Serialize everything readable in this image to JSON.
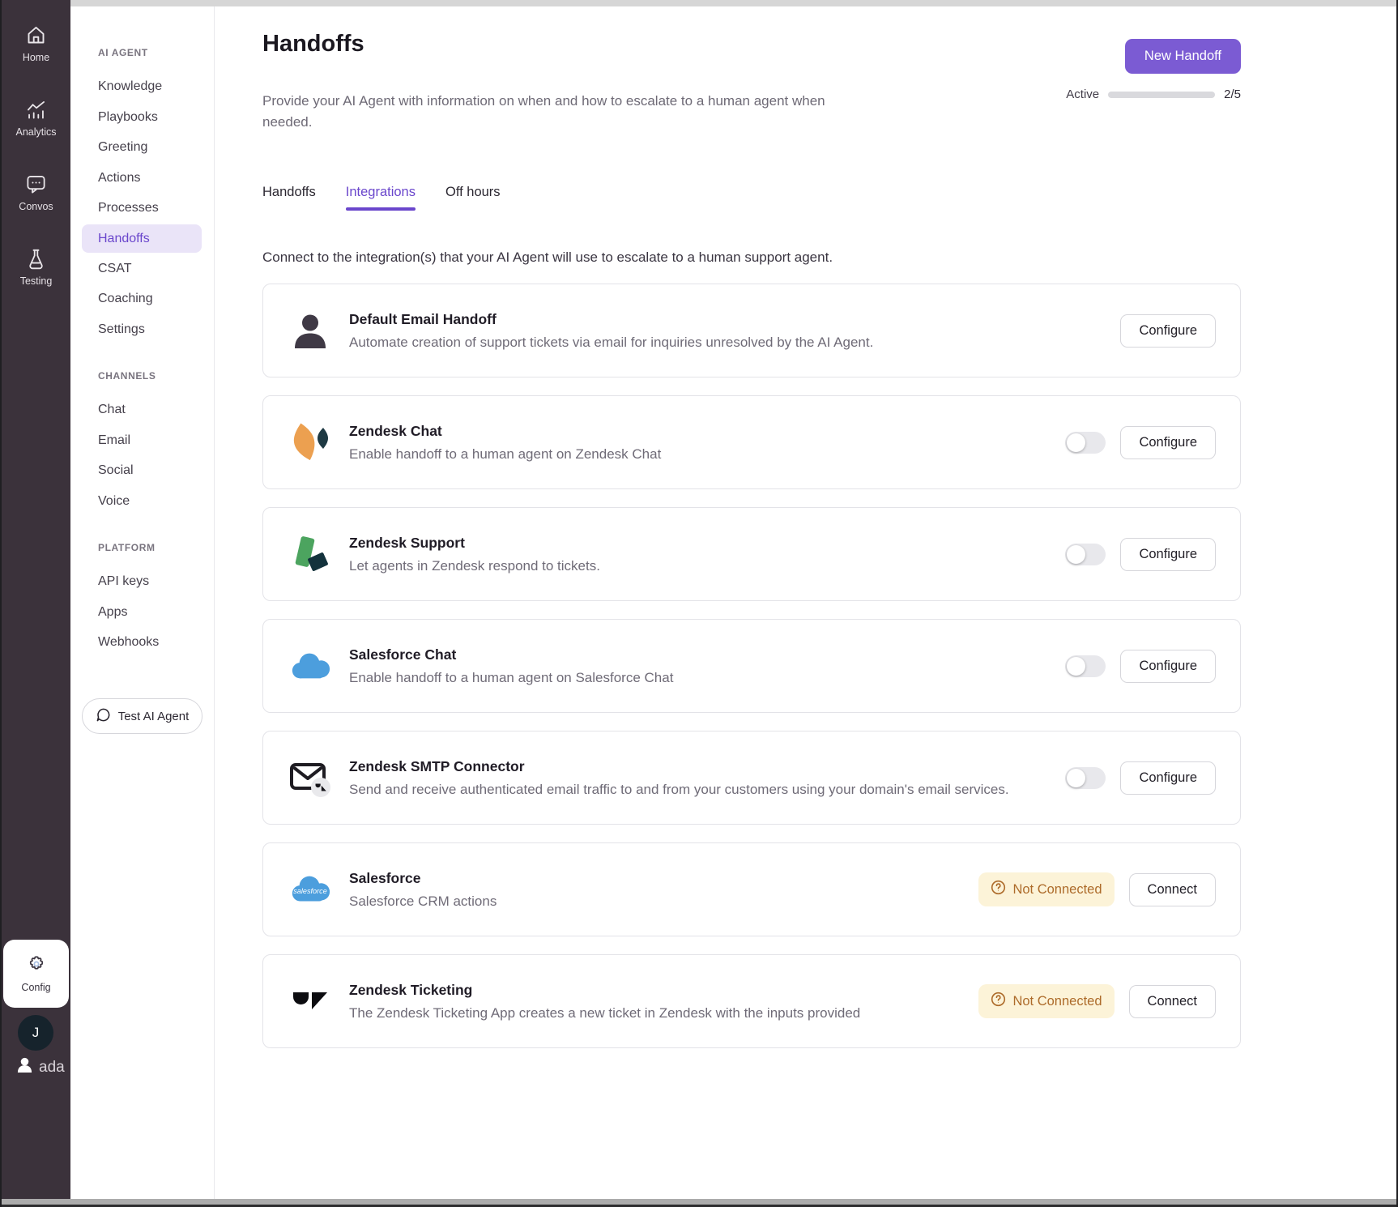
{
  "colors": {
    "rail_bg": "#3b323b",
    "accent": "#6a46cc",
    "accent_strong": "#7b5bd3",
    "accent_light": "#eae4f8",
    "green": "#3fa357",
    "badge_bg": "#fcf3d8",
    "badge_text": "#ad6b2a"
  },
  "left_rail": {
    "items": [
      {
        "label": "Home",
        "icon": "home-icon"
      },
      {
        "label": "Analytics",
        "icon": "analytics-icon"
      },
      {
        "label": "Convos",
        "icon": "convos-icon"
      },
      {
        "label": "Testing",
        "icon": "testing-icon"
      }
    ],
    "config_label": "Config",
    "avatar_initial": "J",
    "brand": "ada"
  },
  "sidebar": {
    "sections": [
      {
        "title": "AI AGENT",
        "items": [
          "Knowledge",
          "Playbooks",
          "Greeting",
          "Actions",
          "Processes",
          "Handoffs",
          "CSAT",
          "Coaching",
          "Settings"
        ]
      },
      {
        "title": "CHANNELS",
        "items": [
          "Chat",
          "Email",
          "Social",
          "Voice"
        ]
      },
      {
        "title": "PLATFORM",
        "items": [
          "API keys",
          "Apps",
          "Webhooks"
        ]
      }
    ],
    "active_item": "Handoffs",
    "test_button_label": "Test AI Agent"
  },
  "header": {
    "title": "Handoffs",
    "description": "Provide your AI Agent with information on when and how to escalate to a human agent when needed.",
    "new_button_label": "New Handoff",
    "active_label": "Active",
    "active_count": "2/5",
    "active_ratio": 0.4
  },
  "tabs": [
    {
      "label": "Handoffs",
      "active": false
    },
    {
      "label": "Integrations",
      "active": true
    },
    {
      "label": "Off hours",
      "active": false
    }
  ],
  "intro": "Connect to the integration(s) that your AI Agent will use to escalate to a human support agent.",
  "integrations": [
    {
      "name": "Default Email Handoff",
      "description": "Automate creation of support tickets via email for inquiries unresolved by the AI Agent.",
      "icon": "person-icon",
      "toggle": null,
      "badge": null,
      "action": "Configure"
    },
    {
      "name": "Zendesk Chat",
      "description": "Enable handoff to a human agent on Zendesk Chat",
      "icon": "zendesk-chat-icon",
      "toggle": "off",
      "badge": null,
      "action": "Configure"
    },
    {
      "name": "Zendesk Support",
      "description": "Let agents in Zendesk respond to tickets.",
      "icon": "zendesk-support-icon",
      "toggle": "off",
      "badge": null,
      "action": "Configure"
    },
    {
      "name": "Salesforce Chat",
      "description": "Enable handoff to a human agent on Salesforce Chat",
      "icon": "salesforce-cloud-icon",
      "toggle": "off",
      "badge": null,
      "action": "Configure"
    },
    {
      "name": "Zendesk SMTP Connector",
      "description": "Send and receive authenticated email traffic to and from your customers using your domain's email services.",
      "icon": "email-zendesk-icon",
      "toggle": "off",
      "badge": null,
      "action": "Configure"
    },
    {
      "name": "Salesforce",
      "description": "Salesforce CRM actions",
      "icon": "salesforce-logo",
      "toggle": null,
      "badge": "Not Connected",
      "action": "Connect"
    },
    {
      "name": "Zendesk Ticketing",
      "description": "The Zendesk Ticketing App creates a new ticket in Zendesk with the inputs provided",
      "icon": "zendesk-logo",
      "toggle": null,
      "badge": "Not Connected",
      "action": "Connect"
    }
  ]
}
